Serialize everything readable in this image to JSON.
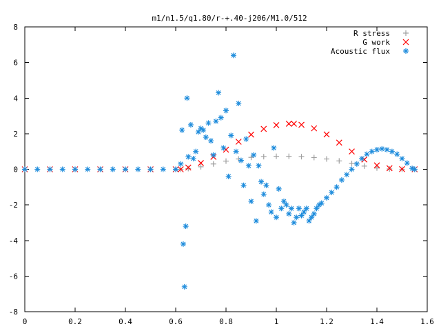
{
  "chart_data": {
    "type": "scatter",
    "title": "m1/n1.5/q1.80/r-+.40-j206/M1.0/512",
    "xlabel": "",
    "ylabel": "",
    "xlim": [
      0,
      1.6
    ],
    "ylim": [
      -8,
      8
    ],
    "x_ticks": [
      0,
      0.2,
      0.4,
      0.6,
      0.8,
      1,
      1.2,
      1.4,
      1.6
    ],
    "y_ticks": [
      -8,
      -6,
      -4,
      -2,
      0,
      2,
      4,
      6,
      8
    ],
    "x_tick_labels": [
      "0",
      "0.2",
      "0.4",
      "0.6",
      "0.8",
      "1",
      "1.2",
      "1.4",
      "1.6"
    ],
    "y_tick_labels": [
      "-8",
      "-6",
      "-4",
      "-2",
      "0",
      "2",
      "4",
      "6",
      "8"
    ],
    "grid": false,
    "legend_position": "top-right",
    "series": [
      {
        "name": "R stress",
        "marker": "plus",
        "color": "#a0a0a0",
        "x": [
          0.0,
          0.1,
          0.2,
          0.3,
          0.4,
          0.5,
          0.6,
          0.62,
          0.65,
          0.7,
          0.75,
          0.8,
          0.85,
          0.9,
          0.95,
          1.0,
          1.05,
          1.1,
          1.15,
          1.2,
          1.25,
          1.3,
          1.35,
          1.4,
          1.45,
          1.5,
          1.55
        ],
        "y": [
          0.0,
          0.0,
          0.0,
          0.0,
          0.0,
          0.0,
          0.0,
          0.0,
          0.04,
          0.14,
          0.3,
          0.46,
          0.58,
          0.67,
          0.71,
          0.73,
          0.73,
          0.71,
          0.66,
          0.58,
          0.47,
          0.33,
          0.18,
          0.07,
          0.02,
          0.0,
          0.0
        ]
      },
      {
        "name": "G work",
        "marker": "cross",
        "color": "#ff0000",
        "x": [
          0.0,
          0.1,
          0.2,
          0.3,
          0.4,
          0.5,
          0.6,
          0.62,
          0.65,
          0.7,
          0.75,
          0.8,
          0.85,
          0.9,
          0.95,
          1.0,
          1.05,
          1.07,
          1.1,
          1.15,
          1.2,
          1.25,
          1.3,
          1.35,
          1.4,
          1.45,
          1.5,
          1.55
        ],
        "y": [
          0.0,
          0.0,
          0.0,
          0.0,
          0.0,
          0.0,
          0.0,
          0.0,
          0.1,
          0.35,
          0.7,
          1.1,
          1.55,
          1.95,
          2.27,
          2.48,
          2.56,
          2.56,
          2.5,
          2.3,
          1.96,
          1.5,
          1.0,
          0.55,
          0.22,
          0.06,
          0.01,
          0.0
        ]
      },
      {
        "name": "Acoustic flux",
        "marker": "star",
        "color": "#1e8cdc",
        "x": [
          0.0,
          0.05,
          0.1,
          0.15,
          0.2,
          0.25,
          0.3,
          0.35,
          0.4,
          0.45,
          0.5,
          0.55,
          0.6,
          0.62,
          0.625,
          0.63,
          0.635,
          0.64,
          0.645,
          0.65,
          0.66,
          0.67,
          0.68,
          0.69,
          0.7,
          0.71,
          0.72,
          0.73,
          0.74,
          0.75,
          0.76,
          0.77,
          0.78,
          0.79,
          0.8,
          0.81,
          0.82,
          0.83,
          0.84,
          0.85,
          0.86,
          0.87,
          0.88,
          0.89,
          0.9,
          0.91,
          0.92,
          0.93,
          0.94,
          0.95,
          0.96,
          0.97,
          0.98,
          0.99,
          1.0,
          1.01,
          1.02,
          1.03,
          1.04,
          1.05,
          1.06,
          1.07,
          1.08,
          1.09,
          1.1,
          1.11,
          1.12,
          1.13,
          1.14,
          1.15,
          1.16,
          1.17,
          1.18,
          1.2,
          1.22,
          1.24,
          1.26,
          1.28,
          1.3,
          1.32,
          1.34,
          1.36,
          1.38,
          1.4,
          1.42,
          1.44,
          1.46,
          1.48,
          1.5,
          1.52,
          1.54,
          1.55
        ],
        "y": [
          0.0,
          0.0,
          0.0,
          0.0,
          0.0,
          0.0,
          0.0,
          0.0,
          0.0,
          0.0,
          0.0,
          0.0,
          0.0,
          0.3,
          2.2,
          -4.2,
          -6.6,
          -3.2,
          4.0,
          0.7,
          2.5,
          0.6,
          1.0,
          2.1,
          2.3,
          2.2,
          1.8,
          2.6,
          1.6,
          0.8,
          2.7,
          4.3,
          2.9,
          1.2,
          3.3,
          -0.4,
          1.9,
          6.4,
          1.0,
          3.7,
          0.5,
          -0.9,
          1.7,
          0.2,
          -1.8,
          0.8,
          -2.9,
          0.2,
          -0.7,
          -1.4,
          -0.9,
          -2.0,
          -2.4,
          1.2,
          -2.7,
          -1.1,
          -2.2,
          -1.8,
          -2.0,
          -2.5,
          -2.2,
          -3.0,
          -2.7,
          -2.2,
          -2.6,
          -2.4,
          -2.2,
          -2.9,
          -2.7,
          -2.5,
          -2.2,
          -2.0,
          -1.9,
          -1.6,
          -1.3,
          -1.0,
          -0.6,
          -0.3,
          0.0,
          0.3,
          0.6,
          0.85,
          1.0,
          1.1,
          1.15,
          1.1,
          1.0,
          0.85,
          0.6,
          0.35,
          0.05,
          0.0
        ]
      }
    ]
  }
}
